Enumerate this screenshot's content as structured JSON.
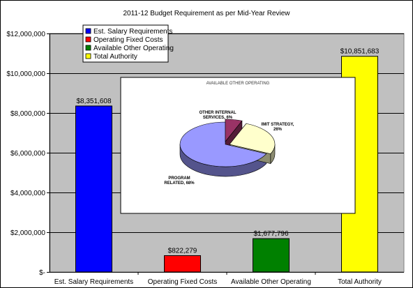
{
  "chart_data": {
    "type": "bar",
    "title": "2011-12 Budget Requirement as per Mid-Year Review",
    "categories": [
      "Est. Salary Requirements",
      "Operating Fixed Costs",
      "Available Other Operating",
      "Total Authority"
    ],
    "values": [
      8351608,
      822279,
      1677796,
      10851683
    ],
    "value_labels": [
      "$8,351,608",
      "$822,279",
      "$1,677,796",
      "$10,851,683"
    ],
    "colors": [
      "#0000ff",
      "#ff0000",
      "#008000",
      "#ffff00"
    ],
    "ylim": [
      0,
      12000000
    ],
    "yticks": [
      0,
      2000000,
      4000000,
      6000000,
      8000000,
      10000000,
      12000000
    ],
    "ytick_labels": [
      "$-",
      "$2,000,000",
      "$4,000,000",
      "$6,000,000",
      "$8,000,000",
      "$10,000,000",
      "$12,000,000"
    ],
    "grid": true,
    "plot_background": "#c0c0c0",
    "legend": {
      "placement": "top-left",
      "entries": [
        "Est. Salary Requirements",
        "Operating Fixed Costs",
        "Available Other Operating",
        "Total Authority"
      ]
    },
    "inset": {
      "type": "pie",
      "title": "AVAILABLE OTHER OPERATING",
      "slices": [
        {
          "label": "PROGRAM RELATED, 68%",
          "label_lines": [
            "PROGRAM",
            "RELATED, 68%"
          ],
          "value": 68,
          "color": "#9999ff"
        },
        {
          "label": "OTHER INTERNAL SERVICES, 6%",
          "label_lines": [
            "OTHER INTERNAL",
            "SERVICES, 6%"
          ],
          "value": 6,
          "color": "#993366"
        },
        {
          "label": "IMIT STRATEGY, 26%",
          "label_lines": [
            "IMIT STRATEGY,",
            "26%"
          ],
          "value": 26,
          "color": "#ffffcc"
        }
      ]
    }
  }
}
